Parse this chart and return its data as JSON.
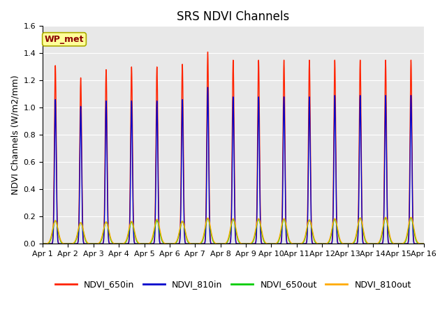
{
  "title": "SRS NDVI Channels",
  "ylabel": "NDVI Channels (W/m2/mm)",
  "xlabel": "",
  "ylim": [
    0,
    1.6
  ],
  "yticks": [
    0.0,
    0.2,
    0.4,
    0.6,
    0.8,
    1.0,
    1.2,
    1.4,
    1.6
  ],
  "x_tick_labels": [
    "Apr 1",
    "Apr 2",
    "Apr 3",
    "Apr 4",
    "Apr 5",
    "Apr 6",
    "Apr 7",
    "Apr 8",
    "Apr 9",
    "Apr 10",
    "Apr 11",
    "Apr 12",
    "Apr 13",
    "Apr 14",
    "Apr 15",
    "Apr 16"
  ],
  "annotation_text": "WP_met",
  "annotation_box_color": "#FFFF99",
  "annotation_text_color": "#8B0000",
  "annotation_edge_color": "#AAAA00",
  "line_colors": {
    "NDVI_650in": "#FF2200",
    "NDVI_810in": "#0000CC",
    "NDVI_650out": "#00CC00",
    "NDVI_810out": "#FFAA00"
  },
  "peak_heights_650in": [
    1.31,
    1.22,
    1.28,
    1.3,
    1.3,
    1.32,
    1.41,
    1.35,
    1.35,
    1.35,
    1.35,
    1.35,
    1.35,
    1.35,
    1.35
  ],
  "peak_heights_810in": [
    1.06,
    1.01,
    1.05,
    1.05,
    1.05,
    1.06,
    1.15,
    1.08,
    1.08,
    1.08,
    1.08,
    1.09,
    1.09,
    1.09,
    1.09
  ],
  "peak_heights_650out": [
    0.17,
    0.155,
    0.16,
    0.16,
    0.17,
    0.165,
    0.185,
    0.18,
    0.18,
    0.18,
    0.175,
    0.18,
    0.19,
    0.19,
    0.19
  ],
  "peak_heights_810out": [
    0.17,
    0.155,
    0.16,
    0.165,
    0.18,
    0.165,
    0.19,
    0.185,
    0.185,
    0.185,
    0.175,
    0.185,
    0.19,
    0.195,
    0.195
  ],
  "sigma_650in": 0.038,
  "sigma_810in": 0.035,
  "sigma_650out": 0.1,
  "sigma_810out": 0.11,
  "n_days": 15,
  "points_per_day": 500,
  "background_color": "#E8E8E8",
  "title_fontsize": 12,
  "legend_fontsize": 9,
  "axis_label_fontsize": 9,
  "tick_fontsize": 8
}
